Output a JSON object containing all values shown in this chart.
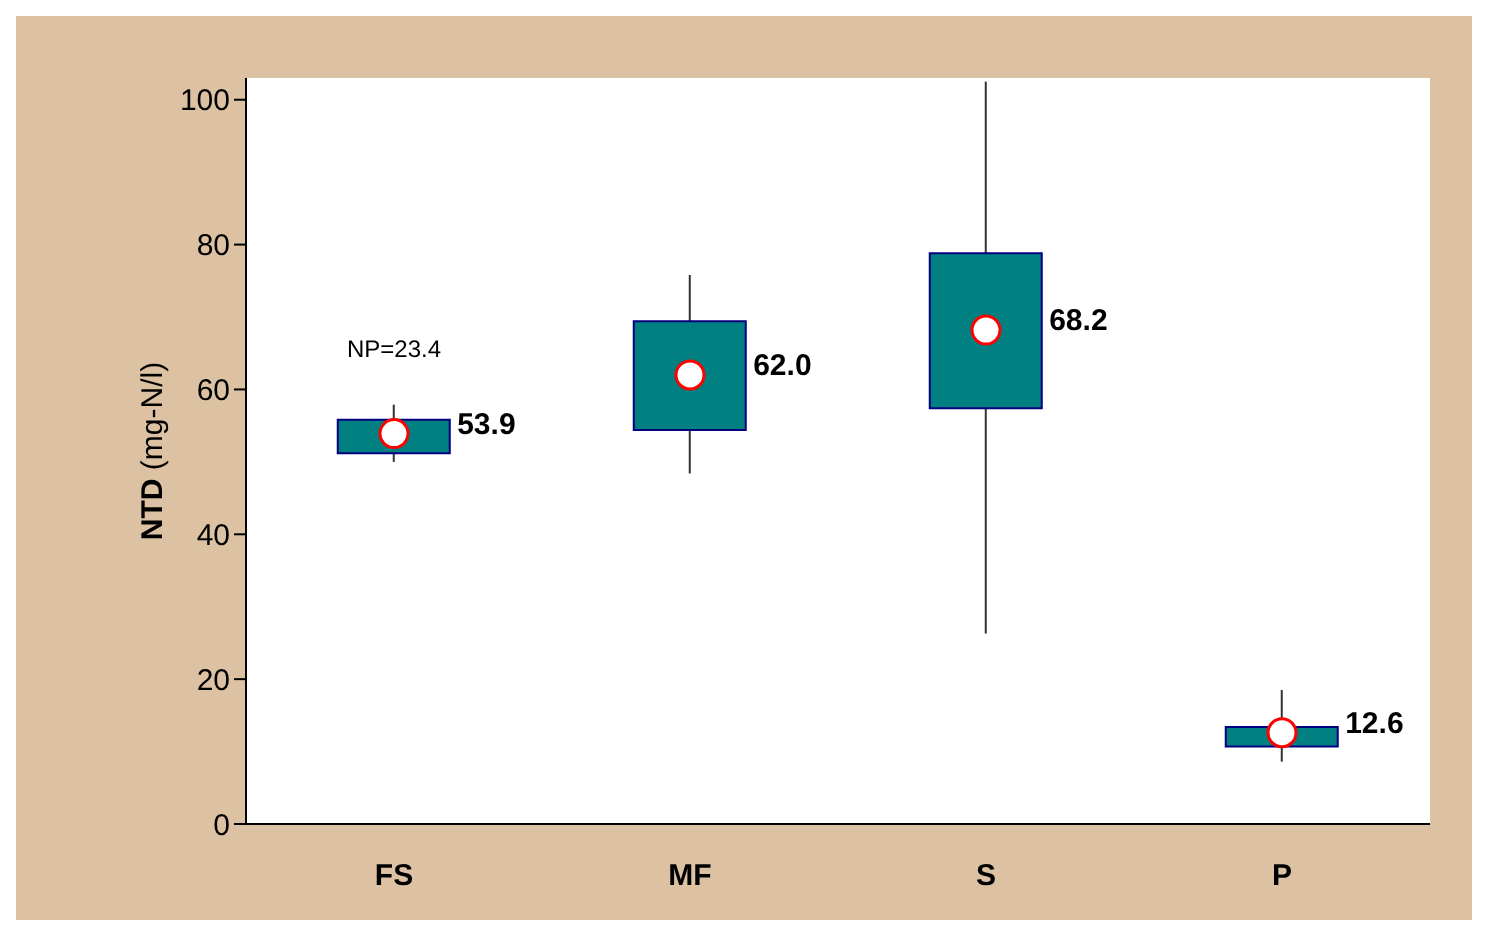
{
  "chart_data": {
    "type": "box",
    "ylabel": "NTD (mg-N/l)",
    "categories": [
      "FS",
      "MF",
      "S",
      "P"
    ],
    "boxes": [
      {
        "low": 50.0,
        "q1": 51.2,
        "median": 53.9,
        "q3": 55.8,
        "high": 57.9
      },
      {
        "low": 48.4,
        "q1": 54.4,
        "median": 62.0,
        "q3": 69.4,
        "high": 75.8
      },
      {
        "low": 26.3,
        "q1": 57.4,
        "median": 68.2,
        "q3": 78.8,
        "high": 102.5
      },
      {
        "low": 8.6,
        "q1": 10.7,
        "median": 12.6,
        "q3": 13.4,
        "high": 18.5
      }
    ],
    "value_labels": [
      "53.9",
      "62.0",
      "68.2",
      "12.6"
    ],
    "color": "#008080",
    "ylim": [
      0,
      103
    ],
    "yticks": [
      0,
      20,
      40,
      60,
      80,
      100
    ],
    "marker": "circle",
    "annotations": [
      "NP=23.4"
    ]
  }
}
